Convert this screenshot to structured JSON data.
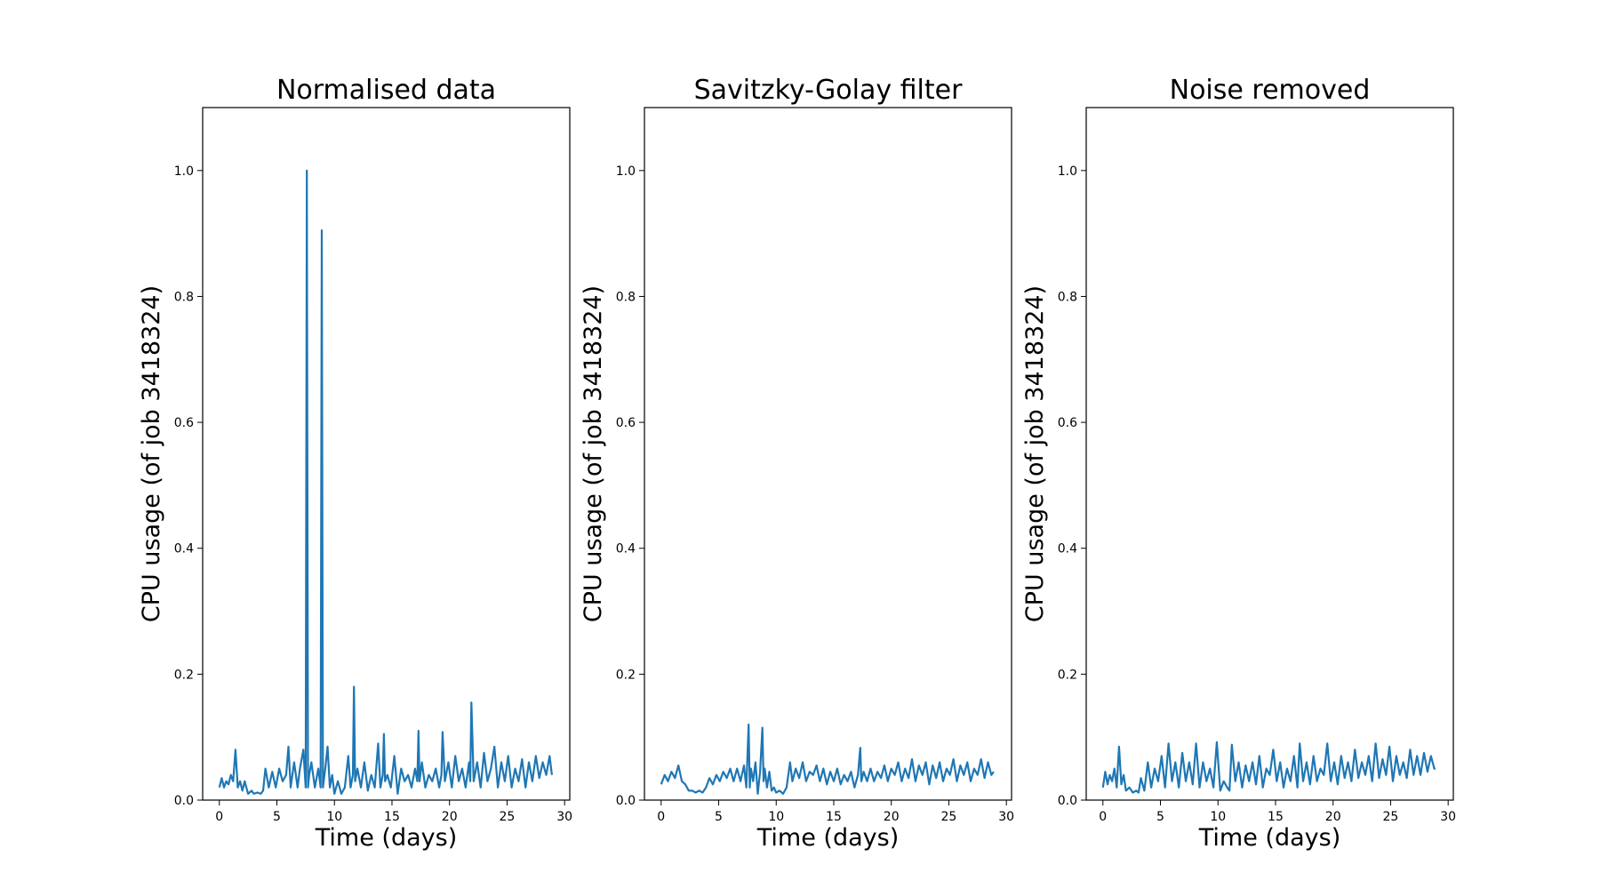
{
  "chart_data": [
    {
      "type": "line",
      "title": "Normalised data",
      "xlabel": "Time (days)",
      "ylabel": "CPU usage (of job 3418324)",
      "xlim": [
        -1.45,
        30.45
      ],
      "ylim": [
        0.0,
        1.1
      ],
      "xticks": [
        "0",
        "5",
        "10",
        "15",
        "20",
        "25",
        "30"
      ],
      "yticks": [
        "0.0",
        "0.2",
        "0.4",
        "0.6",
        "0.8",
        "1.0"
      ],
      "color": "#1f77b4",
      "grid": false,
      "series": [
        {
          "x": [
            0.0,
            0.2,
            0.4,
            0.6,
            0.8,
            1.0,
            1.2,
            1.4,
            1.6,
            1.8,
            2.0,
            2.2,
            2.5,
            2.8,
            3.0,
            3.3,
            3.6,
            3.8,
            4.0,
            4.3,
            4.6,
            4.9,
            5.2,
            5.5,
            5.8,
            6.0,
            6.2,
            6.5,
            6.8,
            7.0,
            7.3,
            7.5,
            7.6,
            7.7,
            7.8,
            8.0,
            8.3,
            8.6,
            8.8,
            8.9,
            9.0,
            9.2,
            9.4,
            9.6,
            9.8,
            10.0,
            10.3,
            10.6,
            10.9,
            11.2,
            11.4,
            11.6,
            11.7,
            11.8,
            12.0,
            12.3,
            12.6,
            12.9,
            13.2,
            13.5,
            13.8,
            14.0,
            14.2,
            14.3,
            14.4,
            14.6,
            14.9,
            15.2,
            15.5,
            15.8,
            16.1,
            16.4,
            16.7,
            17.0,
            17.2,
            17.3,
            17.4,
            17.6,
            17.9,
            18.2,
            18.5,
            18.8,
            19.1,
            19.3,
            19.4,
            19.6,
            19.9,
            20.2,
            20.5,
            20.8,
            21.1,
            21.4,
            21.7,
            21.8,
            21.9,
            22.1,
            22.4,
            22.7,
            23.0,
            23.3,
            23.6,
            23.9,
            24.2,
            24.5,
            24.8,
            25.1,
            25.4,
            25.7,
            26.0,
            26.3,
            26.6,
            26.9,
            27.2,
            27.5,
            27.8,
            28.1,
            28.4,
            28.7,
            28.9
          ],
          "y": [
            0.02,
            0.035,
            0.02,
            0.03,
            0.025,
            0.04,
            0.03,
            0.08,
            0.02,
            0.03,
            0.015,
            0.03,
            0.01,
            0.015,
            0.01,
            0.012,
            0.01,
            0.015,
            0.05,
            0.02,
            0.045,
            0.02,
            0.05,
            0.03,
            0.04,
            0.085,
            0.02,
            0.06,
            0.02,
            0.05,
            0.08,
            0.02,
            1.0,
            0.02,
            0.04,
            0.06,
            0.02,
            0.05,
            0.02,
            0.905,
            0.02,
            0.05,
            0.085,
            0.02,
            0.04,
            0.01,
            0.03,
            0.01,
            0.02,
            0.07,
            0.02,
            0.04,
            0.18,
            0.03,
            0.05,
            0.02,
            0.06,
            0.015,
            0.04,
            0.02,
            0.09,
            0.02,
            0.04,
            0.105,
            0.03,
            0.04,
            0.02,
            0.07,
            0.01,
            0.05,
            0.03,
            0.04,
            0.02,
            0.05,
            0.03,
            0.11,
            0.03,
            0.06,
            0.02,
            0.04,
            0.03,
            0.05,
            0.02,
            0.04,
            0.108,
            0.03,
            0.06,
            0.02,
            0.07,
            0.03,
            0.05,
            0.02,
            0.06,
            0.03,
            0.155,
            0.03,
            0.06,
            0.02,
            0.075,
            0.03,
            0.05,
            0.085,
            0.02,
            0.06,
            0.03,
            0.07,
            0.02,
            0.05,
            0.03,
            0.065,
            0.02,
            0.06,
            0.03,
            0.07,
            0.035,
            0.06,
            0.04,
            0.07,
            0.04
          ]
        }
      ]
    },
    {
      "type": "line",
      "title": "Savitzky-Golay filter",
      "xlabel": "Time (days)",
      "ylabel": "CPU usage (of job 3418324)",
      "xlim": [
        -1.45,
        30.45
      ],
      "ylim": [
        0.0,
        1.1
      ],
      "xticks": [
        "0",
        "5",
        "10",
        "15",
        "20",
        "25",
        "30"
      ],
      "yticks": [
        "0.0",
        "0.2",
        "0.4",
        "0.6",
        "0.8",
        "1.0"
      ],
      "color": "#1f77b4",
      "grid": false,
      "series": [
        {
          "x": [
            0.0,
            0.3,
            0.6,
            0.9,
            1.2,
            1.5,
            1.8,
            2.1,
            2.4,
            2.7,
            3.0,
            3.3,
            3.6,
            3.9,
            4.2,
            4.5,
            4.8,
            5.1,
            5.4,
            5.7,
            6.0,
            6.3,
            6.6,
            6.9,
            7.2,
            7.4,
            7.6,
            7.7,
            7.8,
            8.0,
            8.2,
            8.4,
            8.6,
            8.8,
            8.9,
            9.0,
            9.2,
            9.4,
            9.6,
            9.8,
            10.0,
            10.3,
            10.6,
            10.9,
            11.2,
            11.4,
            11.7,
            12.0,
            12.3,
            12.6,
            12.9,
            13.2,
            13.5,
            13.8,
            14.1,
            14.4,
            14.7,
            15.0,
            15.3,
            15.6,
            15.9,
            16.2,
            16.5,
            16.8,
            17.1,
            17.3,
            17.4,
            17.6,
            17.9,
            18.2,
            18.5,
            18.8,
            19.1,
            19.4,
            19.7,
            20.0,
            20.3,
            20.6,
            20.9,
            21.2,
            21.5,
            21.8,
            22.1,
            22.4,
            22.7,
            23.0,
            23.3,
            23.6,
            23.9,
            24.2,
            24.5,
            24.8,
            25.1,
            25.4,
            25.7,
            26.0,
            26.3,
            26.6,
            26.9,
            27.2,
            27.5,
            27.8,
            28.1,
            28.4,
            28.7,
            28.9
          ],
          "y": [
            0.025,
            0.04,
            0.03,
            0.045,
            0.035,
            0.055,
            0.03,
            0.025,
            0.015,
            0.015,
            0.012,
            0.015,
            0.012,
            0.02,
            0.035,
            0.025,
            0.04,
            0.03,
            0.045,
            0.035,
            0.05,
            0.03,
            0.05,
            0.03,
            0.055,
            0.02,
            0.12,
            0.02,
            0.05,
            0.03,
            0.06,
            0.01,
            0.045,
            0.115,
            0.03,
            0.05,
            0.02,
            0.045,
            0.015,
            0.02,
            0.012,
            0.015,
            0.01,
            0.02,
            0.06,
            0.03,
            0.05,
            0.035,
            0.06,
            0.03,
            0.045,
            0.04,
            0.055,
            0.03,
            0.05,
            0.025,
            0.045,
            0.03,
            0.05,
            0.025,
            0.04,
            0.03,
            0.045,
            0.02,
            0.04,
            0.083,
            0.03,
            0.045,
            0.03,
            0.05,
            0.03,
            0.045,
            0.035,
            0.055,
            0.03,
            0.05,
            0.04,
            0.06,
            0.03,
            0.05,
            0.035,
            0.065,
            0.03,
            0.055,
            0.04,
            0.06,
            0.025,
            0.055,
            0.035,
            0.06,
            0.03,
            0.05,
            0.04,
            0.065,
            0.03,
            0.055,
            0.04,
            0.06,
            0.03,
            0.05,
            0.04,
            0.065,
            0.035,
            0.06,
            0.04,
            0.045
          ]
        }
      ]
    },
    {
      "type": "line",
      "title": "Noise removed",
      "xlabel": "Time (days)",
      "ylabel": "CPU usage (of job 3418324)",
      "xlim": [
        -1.45,
        30.45
      ],
      "ylim": [
        0.0,
        1.1
      ],
      "xticks": [
        "0",
        "5",
        "10",
        "15",
        "20",
        "25",
        "30"
      ],
      "yticks": [
        "0.0",
        "0.2",
        "0.4",
        "0.6",
        "0.8",
        "1.0"
      ],
      "color": "#1f77b4",
      "grid": false,
      "series": [
        {
          "x": [
            0.0,
            0.2,
            0.4,
            0.6,
            0.8,
            1.0,
            1.2,
            1.4,
            1.6,
            1.8,
            2.0,
            2.3,
            2.6,
            2.9,
            3.1,
            3.3,
            3.6,
            3.9,
            4.2,
            4.5,
            4.8,
            5.1,
            5.4,
            5.7,
            6.0,
            6.3,
            6.6,
            6.9,
            7.2,
            7.5,
            7.8,
            8.1,
            8.4,
            8.7,
            9.0,
            9.3,
            9.6,
            9.9,
            10.2,
            10.5,
            10.8,
            11.0,
            11.2,
            11.5,
            11.8,
            12.1,
            12.4,
            12.7,
            13.0,
            13.3,
            13.6,
            13.9,
            14.2,
            14.5,
            14.8,
            15.1,
            15.4,
            15.7,
            16.0,
            16.3,
            16.6,
            16.9,
            17.1,
            17.4,
            17.7,
            18.0,
            18.3,
            18.6,
            18.9,
            19.2,
            19.5,
            19.8,
            20.1,
            20.4,
            20.7,
            21.0,
            21.3,
            21.6,
            21.9,
            22.2,
            22.5,
            22.8,
            23.1,
            23.4,
            23.7,
            24.0,
            24.3,
            24.6,
            24.9,
            25.2,
            25.5,
            25.8,
            26.1,
            26.4,
            26.7,
            27.0,
            27.3,
            27.6,
            27.9,
            28.2,
            28.5,
            28.8,
            28.9
          ],
          "y": [
            0.02,
            0.045,
            0.025,
            0.04,
            0.03,
            0.05,
            0.02,
            0.085,
            0.025,
            0.04,
            0.015,
            0.02,
            0.012,
            0.015,
            0.012,
            0.035,
            0.015,
            0.06,
            0.02,
            0.05,
            0.03,
            0.07,
            0.02,
            0.09,
            0.03,
            0.06,
            0.02,
            0.075,
            0.03,
            0.06,
            0.025,
            0.09,
            0.02,
            0.06,
            0.03,
            0.05,
            0.02,
            0.092,
            0.015,
            0.03,
            0.02,
            0.015,
            0.088,
            0.03,
            0.06,
            0.02,
            0.055,
            0.03,
            0.06,
            0.025,
            0.07,
            0.02,
            0.05,
            0.04,
            0.08,
            0.03,
            0.06,
            0.02,
            0.05,
            0.03,
            0.07,
            0.02,
            0.09,
            0.03,
            0.06,
            0.025,
            0.07,
            0.03,
            0.05,
            0.04,
            0.09,
            0.03,
            0.06,
            0.025,
            0.07,
            0.035,
            0.06,
            0.03,
            0.08,
            0.035,
            0.06,
            0.04,
            0.07,
            0.03,
            0.09,
            0.035,
            0.065,
            0.04,
            0.085,
            0.03,
            0.07,
            0.04,
            0.06,
            0.035,
            0.08,
            0.04,
            0.07,
            0.04,
            0.075,
            0.045,
            0.07,
            0.05,
            0.05
          ]
        }
      ]
    }
  ]
}
